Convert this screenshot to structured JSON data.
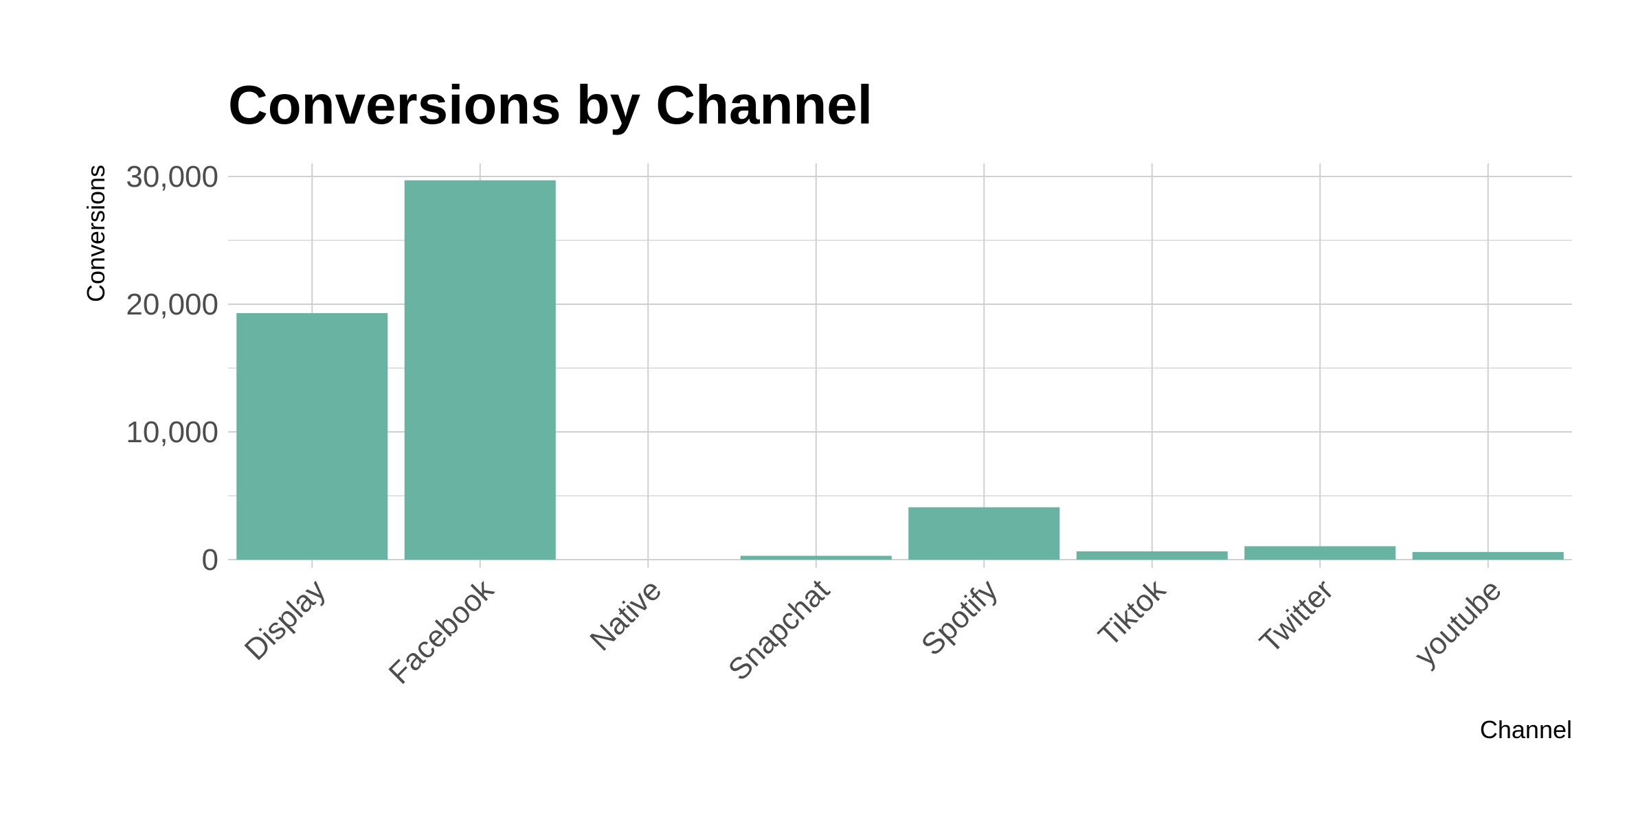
{
  "chart_data": {
    "type": "bar",
    "title": "Conversions by Channel",
    "xlabel": "Channel",
    "ylabel": "Conversions",
    "categories": [
      "Display",
      "Facebook",
      "Native",
      "Snapchat",
      "Spotify",
      "Tiktok",
      "Twitter",
      "youtube"
    ],
    "values": [
      19300,
      29700,
      0,
      300,
      4100,
      650,
      1050,
      600
    ],
    "ylim": [
      0,
      30000
    ],
    "yticks": [
      0,
      10000,
      20000,
      30000
    ],
    "ytick_labels": [
      "0",
      "10,000",
      "20,000",
      "30,000"
    ],
    "grid": true,
    "bar_color": "#69b3a2"
  }
}
